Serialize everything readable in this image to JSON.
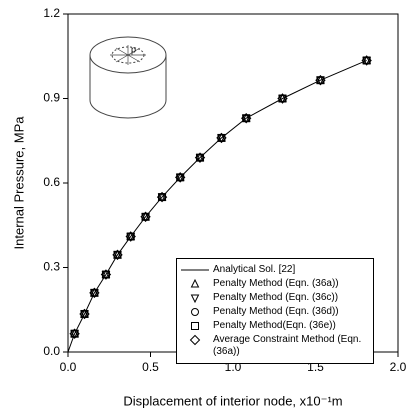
{
  "chart_data": {
    "type": "line",
    "xlabel": "Displacement of interior node, x10⁻¹m",
    "ylabel": "Internal Pressure, MPa",
    "inset_label": "p",
    "xlim": [
      0,
      2
    ],
    "ylim": [
      0,
      1.2
    ],
    "xticks": [
      {
        "value": 0,
        "label": "0.0"
      },
      0.5,
      {
        "value": 1,
        "label": "1.0"
      },
      1.5,
      {
        "value": 2,
        "label": "2.0"
      }
    ],
    "yticks": [
      {
        "value": 0,
        "label": "0.0"
      },
      0.3,
      0.6,
      0.9,
      {
        "value": 1.2,
        "label": "1.2"
      }
    ],
    "series": [
      {
        "name": "Analytical Sol. [22]",
        "marker": "line",
        "color": "#000000",
        "x": [
          0,
          0.04,
          0.1,
          0.16,
          0.23,
          0.3,
          0.38,
          0.47,
          0.57,
          0.68,
          0.8,
          0.93,
          1.08,
          1.3,
          1.53,
          1.81
        ],
        "values": [
          0,
          0.065,
          0.135,
          0.21,
          0.275,
          0.345,
          0.41,
          0.48,
          0.55,
          0.62,
          0.69,
          0.76,
          0.83,
          0.9,
          0.965,
          1.035
        ]
      },
      {
        "name": "Penalty Method (Eqn. (36a))",
        "marker": "triangle-up",
        "color": "#000000",
        "x": [
          0.04,
          0.1,
          0.16,
          0.23,
          0.3,
          0.38,
          0.47,
          0.57,
          0.68,
          0.8,
          0.93,
          1.08,
          1.3,
          1.53,
          1.81
        ],
        "values": [
          0.065,
          0.135,
          0.21,
          0.275,
          0.345,
          0.41,
          0.48,
          0.55,
          0.62,
          0.69,
          0.76,
          0.83,
          0.9,
          0.965,
          1.035
        ]
      },
      {
        "name": "Penalty Method (Eqn. (36c))",
        "marker": "triangle-down",
        "color": "#000000",
        "x": [
          0.04,
          0.1,
          0.16,
          0.23,
          0.3,
          0.38,
          0.47,
          0.57,
          0.68,
          0.8,
          0.93,
          1.08,
          1.3,
          1.53,
          1.81
        ],
        "values": [
          0.065,
          0.135,
          0.21,
          0.275,
          0.345,
          0.41,
          0.48,
          0.55,
          0.62,
          0.69,
          0.76,
          0.83,
          0.9,
          0.965,
          1.035
        ]
      },
      {
        "name": "Penalty Method (Eqn. (36d))",
        "marker": "circle",
        "color": "#000000",
        "x": [
          0.04,
          0.1,
          0.16,
          0.23,
          0.3,
          0.38,
          0.47,
          0.57,
          0.68,
          0.8,
          0.93,
          1.08,
          1.3,
          1.53,
          1.81
        ],
        "values": [
          0.065,
          0.135,
          0.21,
          0.275,
          0.345,
          0.41,
          0.48,
          0.55,
          0.62,
          0.69,
          0.76,
          0.83,
          0.9,
          0.965,
          1.035
        ]
      },
      {
        "name": "Penalty Method(Eqn. (36e))",
        "marker": "square",
        "color": "#000000",
        "x": [
          0.04,
          0.1,
          0.16,
          0.23,
          0.3,
          0.38,
          0.47,
          0.57,
          0.68,
          0.8,
          0.93,
          1.08,
          1.3,
          1.53,
          1.81
        ],
        "values": [
          0.065,
          0.135,
          0.21,
          0.275,
          0.345,
          0.41,
          0.48,
          0.55,
          0.62,
          0.69,
          0.76,
          0.83,
          0.9,
          0.965,
          1.035
        ]
      },
      {
        "name": "Average Constraint Method (Eqn. (36a))",
        "marker": "diamond",
        "color": "#000000",
        "x": [
          0.04,
          0.1,
          0.16,
          0.23,
          0.3,
          0.38,
          0.47,
          0.57,
          0.68,
          0.8,
          0.93,
          1.08,
          1.3,
          1.53,
          1.81
        ],
        "values": [
          0.065,
          0.135,
          0.21,
          0.275,
          0.345,
          0.41,
          0.48,
          0.55,
          0.62,
          0.69,
          0.76,
          0.83,
          0.9,
          0.965,
          1.035
        ]
      }
    ]
  }
}
